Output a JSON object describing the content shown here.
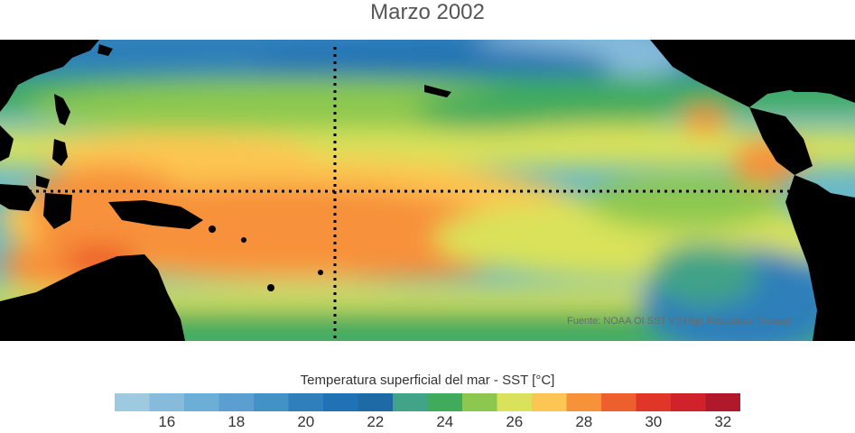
{
  "title": "Marzo 2002",
  "source": "Fuente: NOAA OI SST V2 High Resolution Dataset",
  "colorbar": {
    "label": "Temperatura superficial del mar - SST  [°C]",
    "min": 15,
    "max": 33,
    "step": 1,
    "tick_labels": [
      "16",
      "18",
      "20",
      "22",
      "24",
      "26",
      "28",
      "30",
      "32"
    ],
    "tick_values": [
      16,
      18,
      20,
      22,
      24,
      26,
      28,
      30,
      32
    ],
    "colors": [
      "#9ecae1",
      "#86bbdc",
      "#6baed6",
      "#5a9fd0",
      "#4292c6",
      "#2f7fba",
      "#2171b5",
      "#1d6aa5",
      "#41a387",
      "#41ab5d",
      "#8cc850",
      "#d9e25a",
      "#fdc551",
      "#f7913a",
      "#ed5f2c",
      "#e0362a",
      "#d0222a",
      "#b2182b"
    ]
  },
  "map": {
    "land_color": "#000000",
    "reference_lines": "dotted lines at the equator and at the date line"
  }
}
